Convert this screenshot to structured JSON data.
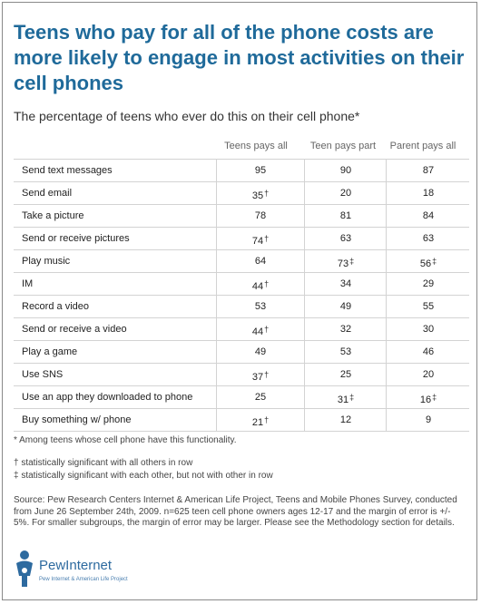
{
  "title": "Teens who pay for all of the phone costs are more likely to engage in most activities on their cell phones",
  "subtitle": "The percentage of teens who ever do this on their cell phone*",
  "chart_data": {
    "type": "table",
    "columns": [
      "Teens pays all",
      "Teen pays part",
      "Parent pays all"
    ],
    "rows": [
      {
        "label": "Send text messages",
        "values": [
          "95",
          "90",
          "87"
        ],
        "marks": [
          "",
          "",
          ""
        ]
      },
      {
        "label": "Send email",
        "values": [
          "35",
          "20",
          "18"
        ],
        "marks": [
          "†",
          "",
          ""
        ]
      },
      {
        "label": "Take a picture",
        "values": [
          "78",
          "81",
          "84"
        ],
        "marks": [
          "",
          "",
          ""
        ]
      },
      {
        "label": "Send or receive pictures",
        "values": [
          "74",
          "63",
          "63"
        ],
        "marks": [
          "†",
          "",
          ""
        ]
      },
      {
        "label": "Play music",
        "values": [
          "64",
          "73",
          "56"
        ],
        "marks": [
          "",
          "‡",
          "‡"
        ]
      },
      {
        "label": "IM",
        "values": [
          "44",
          "34",
          "29"
        ],
        "marks": [
          "†",
          "",
          ""
        ]
      },
      {
        "label": "Record a video",
        "values": [
          "53",
          "49",
          "55"
        ],
        "marks": [
          "",
          "",
          ""
        ]
      },
      {
        "label": "Send or receive a video",
        "values": [
          "44",
          "32",
          "30"
        ],
        "marks": [
          "†",
          "",
          ""
        ]
      },
      {
        "label": "Play a game",
        "values": [
          "49",
          "53",
          "46"
        ],
        "marks": [
          "",
          "",
          ""
        ]
      },
      {
        "label": "Use SNS",
        "values": [
          "37",
          "25",
          "20"
        ],
        "marks": [
          "†",
          "",
          ""
        ]
      },
      {
        "label": "Use an app they downloaded to phone",
        "values": [
          "25",
          "31",
          "16"
        ],
        "marks": [
          "",
          "‡",
          "‡"
        ]
      },
      {
        "label": "Buy something w/ phone",
        "values": [
          "21",
          "12",
          "9"
        ],
        "marks": [
          "†",
          "",
          ""
        ]
      }
    ]
  },
  "notes": {
    "asterisk": "* Among teens whose cell phone have this functionality.",
    "dagger": "† statistically significant with all others in row",
    "double_dagger": "‡ statistically significant with each other, but not with other in row"
  },
  "source": "Source: Pew Research Centers Internet & American Life Project, Teens and Mobile Phones Survey, conducted from June 26 September 24th, 2009. n=625 teen cell phone owners ages 12-17 and the margin of error is +/- 5%. For smaller subgroups, the margin of error may be larger. Please see the Methodology section for details.",
  "logo": {
    "main": "PewInternet",
    "sub": "Pew Internet & American Life Project"
  },
  "colors": {
    "title": "#1f6a9a",
    "rule": "#d3d3d3",
    "logo": "#2d6a9f"
  }
}
